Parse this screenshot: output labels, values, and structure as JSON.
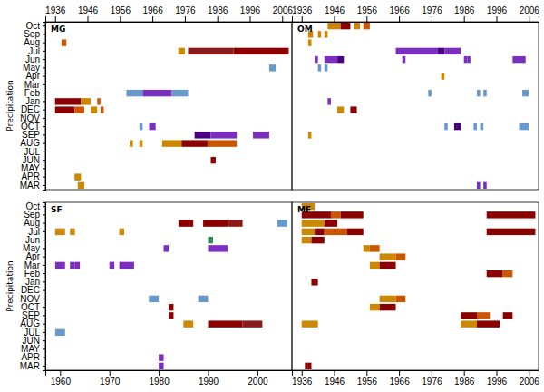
{
  "chart_data": [
    {
      "type": "bar",
      "orientation": "horizontal",
      "title": "MG",
      "y_label": "Precipitation",
      "categories": [
        "Oct",
        "Sep",
        "Aug",
        "Jul",
        "Jun",
        "May",
        "Apr",
        "Mar",
        "Feb",
        "Jan",
        "DEC",
        "NOV",
        "OCT",
        "SEP",
        "AUG",
        "JUL",
        "JUN",
        "MAY",
        "APR",
        "MAR"
      ],
      "xlim": [
        1933,
        2009
      ],
      "xticks": [
        1936,
        1946,
        1956,
        1966,
        1976,
        1986,
        1996,
        2006
      ],
      "bars": [
        {
          "category": "Aug",
          "start": 1938,
          "end": 1939.5,
          "color": "#cc5500"
        },
        {
          "category": "Jul",
          "start": 1974,
          "end": 1976,
          "color": "#cc8800"
        },
        {
          "category": "Jul",
          "start": 1977,
          "end": 1991,
          "color": "#8b1a1a"
        },
        {
          "category": "Jul",
          "start": 1991,
          "end": 2008,
          "color": "#8b0000"
        },
        {
          "category": "May",
          "start": 2002,
          "end": 2004,
          "color": "#6699cc"
        },
        {
          "category": "Feb",
          "start": 1958,
          "end": 1963,
          "color": "#6699cc"
        },
        {
          "category": "Feb",
          "start": 1963,
          "end": 1972,
          "color": "#7b2fbe"
        },
        {
          "category": "Feb",
          "start": 1972,
          "end": 1977,
          "color": "#6699cc"
        },
        {
          "category": "Jan",
          "start": 1936,
          "end": 1944,
          "color": "#8b0000"
        },
        {
          "category": "Jan",
          "start": 1944,
          "end": 1947,
          "color": "#cc8800"
        },
        {
          "category": "Jan",
          "start": 1949,
          "end": 1950,
          "color": "#cc5500"
        },
        {
          "category": "DEC",
          "start": 1936,
          "end": 1942,
          "color": "#8b0000"
        },
        {
          "category": "DEC",
          "start": 1942,
          "end": 1945,
          "color": "#cc5500"
        },
        {
          "category": "DEC",
          "start": 1947,
          "end": 1949,
          "color": "#cc8800"
        },
        {
          "category": "DEC",
          "start": 1950,
          "end": 1951,
          "color": "#cc5500"
        },
        {
          "category": "OCT",
          "start": 1962,
          "end": 1963,
          "color": "#6699cc"
        },
        {
          "category": "OCT",
          "start": 1965,
          "end": 1967,
          "color": "#7b2fbe"
        },
        {
          "category": "SEP",
          "start": 1979,
          "end": 1984,
          "color": "#4b0082"
        },
        {
          "category": "SEP",
          "start": 1984,
          "end": 1992,
          "color": "#7b2fbe"
        },
        {
          "category": "SEP",
          "start": 1997,
          "end": 2002,
          "color": "#7b2fbe"
        },
        {
          "category": "AUG",
          "start": 1959,
          "end": 1960,
          "color": "#cc8800"
        },
        {
          "category": "AUG",
          "start": 1962,
          "end": 1963,
          "color": "#cc8800"
        },
        {
          "category": "AUG",
          "start": 1969,
          "end": 1975,
          "color": "#cc8800"
        },
        {
          "category": "AUG",
          "start": 1975,
          "end": 1983,
          "color": "#8b0000"
        },
        {
          "category": "AUG",
          "start": 1983,
          "end": 1992,
          "color": "#cc5500"
        },
        {
          "category": "JUN",
          "start": 1984,
          "end": 1985.5,
          "color": "#8b0000"
        },
        {
          "category": "APR",
          "start": 1942,
          "end": 1944,
          "color": "#cc8800"
        },
        {
          "category": "MAR",
          "start": 1943,
          "end": 1945,
          "color": "#cc8800"
        }
      ]
    },
    {
      "type": "bar",
      "orientation": "horizontal",
      "title": "OM",
      "tick_labels": "x",
      "categories": [
        "Oct",
        "Sep",
        "Aug",
        "Jul",
        "Jun",
        "May",
        "Apr",
        "Mar",
        "Feb",
        "Jan",
        "DEC",
        "NOV",
        "OCT",
        "SEP",
        "AUG",
        "JUL",
        "JUN",
        "MAY",
        "APR",
        "MAR"
      ],
      "xlim": [
        1933,
        2009
      ],
      "xticks": [
        1936,
        1946,
        1956,
        1966,
        1976,
        1986,
        1996,
        2006
      ],
      "bars": [
        {
          "category": "Oct",
          "start": 1944,
          "end": 1948,
          "color": "#cc8800"
        },
        {
          "category": "Oct",
          "start": 1948,
          "end": 1951,
          "color": "#8b0000"
        },
        {
          "category": "Oct",
          "start": 1952,
          "end": 1954,
          "color": "#cc8800"
        },
        {
          "category": "Oct",
          "start": 1955,
          "end": 1957,
          "color": "#cc5500"
        },
        {
          "category": "Sep",
          "start": 1938,
          "end": 1939.5,
          "color": "#cc8800"
        },
        {
          "category": "Sep",
          "start": 1941,
          "end": 1942,
          "color": "#cc8800"
        },
        {
          "category": "Sep",
          "start": 1943,
          "end": 1944,
          "color": "#cc8800"
        },
        {
          "category": "Aug",
          "start": 1938,
          "end": 1939,
          "color": "#cc8800"
        },
        {
          "category": "Jul",
          "start": 1965,
          "end": 1978,
          "color": "#7b2fbe"
        },
        {
          "category": "Jul",
          "start": 1978,
          "end": 1980,
          "color": "#4b0082"
        },
        {
          "category": "Jul",
          "start": 1980,
          "end": 1985,
          "color": "#7b2fbe"
        },
        {
          "category": "Jun",
          "start": 1940,
          "end": 1941,
          "color": "#7b2fbe"
        },
        {
          "category": "Jun",
          "start": 1943,
          "end": 1947,
          "color": "#7b2fbe"
        },
        {
          "category": "Jun",
          "start": 1947,
          "end": 1949,
          "color": "#4b0082"
        },
        {
          "category": "Jun",
          "start": 1967,
          "end": 1968,
          "color": "#7b2fbe"
        },
        {
          "category": "Jun",
          "start": 1986,
          "end": 1987,
          "color": "#7b2fbe"
        },
        {
          "category": "Jun",
          "start": 1987,
          "end": 1988,
          "color": "#7b2fbe"
        },
        {
          "category": "Jun",
          "start": 2001,
          "end": 2005,
          "color": "#7b2fbe"
        },
        {
          "category": "May",
          "start": 1941,
          "end": 1942,
          "color": "#6699cc"
        },
        {
          "category": "May",
          "start": 1943,
          "end": 1944,
          "color": "#6699cc"
        },
        {
          "category": "Apr",
          "start": 1979,
          "end": 1980,
          "color": "#cc8800"
        },
        {
          "category": "Feb",
          "start": 1975,
          "end": 1976,
          "color": "#6699cc"
        },
        {
          "category": "Feb",
          "start": 1990,
          "end": 1991,
          "color": "#6699cc"
        },
        {
          "category": "Feb",
          "start": 1992,
          "end": 1993,
          "color": "#6699cc"
        },
        {
          "category": "Feb",
          "start": 2004,
          "end": 2006,
          "color": "#6699cc"
        },
        {
          "category": "Jan",
          "start": 1944,
          "end": 1945,
          "color": "#7b2fbe"
        },
        {
          "category": "DEC",
          "start": 1947,
          "end": 1949,
          "color": "#cc8800"
        },
        {
          "category": "DEC",
          "start": 1951,
          "end": 1953,
          "color": "#8b0000"
        },
        {
          "category": "OCT",
          "start": 1980,
          "end": 1981,
          "color": "#6699cc"
        },
        {
          "category": "OCT",
          "start": 1983,
          "end": 1985,
          "color": "#4b0082"
        },
        {
          "category": "OCT",
          "start": 1989,
          "end": 1990,
          "color": "#6699cc"
        },
        {
          "category": "OCT",
          "start": 1991,
          "end": 1992,
          "color": "#6699cc"
        },
        {
          "category": "OCT",
          "start": 2003,
          "end": 2006,
          "color": "#6699cc"
        },
        {
          "category": "SEP",
          "start": 1938,
          "end": 1939,
          "color": "#cc8800"
        },
        {
          "category": "MAR",
          "start": 1990,
          "end": 1991,
          "color": "#7b2fbe"
        },
        {
          "category": "MAR",
          "start": 1992,
          "end": 1993,
          "color": "#7b2fbe"
        }
      ]
    },
    {
      "type": "bar",
      "orientation": "horizontal",
      "title": "SF",
      "y_label": "Precipitation",
      "categories": [
        "Oct",
        "Sep",
        "Aug",
        "Jul",
        "Jun",
        "May",
        "Apr",
        "Mar",
        "Feb",
        "Jan",
        "DEC",
        "NOV",
        "OCT",
        "SEP",
        "AUG",
        "JUL",
        "JUN",
        "MAY",
        "APR",
        "MAR"
      ],
      "xlim": [
        1957,
        2007
      ],
      "xticks": [
        1960,
        1970,
        1980,
        1990,
        2000
      ],
      "bars": [
        {
          "category": "Aug",
          "start": 1984,
          "end": 1987,
          "color": "#8b0000"
        },
        {
          "category": "Aug",
          "start": 1989,
          "end": 1994,
          "color": "#8b0000"
        },
        {
          "category": "Aug",
          "start": 1994,
          "end": 1997,
          "color": "#8b1a1a"
        },
        {
          "category": "Aug",
          "start": 2004,
          "end": 2006,
          "color": "#6699cc"
        },
        {
          "category": "Jul",
          "start": 1959,
          "end": 1961,
          "color": "#cc8800"
        },
        {
          "category": "Jul",
          "start": 1962,
          "end": 1963,
          "color": "#cc8800"
        },
        {
          "category": "Jul",
          "start": 1972,
          "end": 1973,
          "color": "#cc8800"
        },
        {
          "category": "Jun",
          "start": 1990,
          "end": 1991,
          "color": "#2e8b57"
        },
        {
          "category": "May",
          "start": 1981,
          "end": 1982,
          "color": "#7b2fbe"
        },
        {
          "category": "May",
          "start": 1990,
          "end": 1994,
          "color": "#7b2fbe"
        },
        {
          "category": "Mar",
          "start": 1959,
          "end": 1961,
          "color": "#7b2fbe"
        },
        {
          "category": "Mar",
          "start": 1962,
          "end": 1963,
          "color": "#7b2fbe"
        },
        {
          "category": "Mar",
          "start": 1963,
          "end": 1964,
          "color": "#7b2fbe"
        },
        {
          "category": "Mar",
          "start": 1970,
          "end": 1971,
          "color": "#7b2fbe"
        },
        {
          "category": "Mar",
          "start": 1972,
          "end": 1975,
          "color": "#7b2fbe"
        },
        {
          "category": "NOV",
          "start": 1978,
          "end": 1980,
          "color": "#6699cc"
        },
        {
          "category": "NOV",
          "start": 1988,
          "end": 1990,
          "color": "#6699cc"
        },
        {
          "category": "OCT",
          "start": 1982,
          "end": 1983,
          "color": "#8b0000"
        },
        {
          "category": "SEP",
          "start": 1982,
          "end": 1983,
          "color": "#8b0000"
        },
        {
          "category": "AUG",
          "start": 1985,
          "end": 1987,
          "color": "#cc8800"
        },
        {
          "category": "AUG",
          "start": 1990,
          "end": 1997,
          "color": "#8b0000"
        },
        {
          "category": "AUG",
          "start": 1997,
          "end": 2001,
          "color": "#8b1a1a"
        },
        {
          "category": "JUL",
          "start": 1959,
          "end": 1961,
          "color": "#6699cc"
        },
        {
          "category": "APR",
          "start": 1980,
          "end": 1981,
          "color": "#7b2fbe"
        },
        {
          "category": "MAR",
          "start": 1980,
          "end": 1981,
          "color": "#7b2fbe"
        }
      ]
    },
    {
      "type": "bar",
      "orientation": "horizontal",
      "title": "MF",
      "tick_labels": "x",
      "categories": [
        "Oct",
        "Sep",
        "Aug",
        "Jul",
        "Jun",
        "May",
        "Apr",
        "Mar",
        "Feb",
        "Jan",
        "DEC",
        "NOV",
        "OCT",
        "SEP",
        "AUG",
        "JUL",
        "JUN",
        "MAY",
        "APR",
        "MAR"
      ],
      "xlim": [
        1933,
        2009
      ],
      "xticks": [
        1936,
        1946,
        1956,
        1966,
        1976,
        1986,
        1996,
        2006
      ],
      "bars": [
        {
          "category": "Oct",
          "start": 1936,
          "end": 1940,
          "color": "#cc8800"
        },
        {
          "category": "Sep",
          "start": 1936,
          "end": 1945,
          "color": "#8b0000"
        },
        {
          "category": "Sep",
          "start": 1945,
          "end": 1948,
          "color": "#cc5500"
        },
        {
          "category": "Sep",
          "start": 1948,
          "end": 1955,
          "color": "#8b0000"
        },
        {
          "category": "Sep",
          "start": 1993,
          "end": 2008,
          "color": "#8b0000"
        },
        {
          "category": "Aug",
          "start": 1936,
          "end": 1943,
          "color": "#cc8800"
        },
        {
          "category": "Aug",
          "start": 1943,
          "end": 1947,
          "color": "#8b0000"
        },
        {
          "category": "Jul",
          "start": 1936,
          "end": 1940,
          "color": "#cc8800"
        },
        {
          "category": "Jul",
          "start": 1940,
          "end": 1943,
          "color": "#8b0000"
        },
        {
          "category": "Jul",
          "start": 1943,
          "end": 1950,
          "color": "#cc5500"
        },
        {
          "category": "Jul",
          "start": 1950,
          "end": 1955,
          "color": "#8b0000"
        },
        {
          "category": "Jul",
          "start": 1993,
          "end": 2008,
          "color": "#8b0000"
        },
        {
          "category": "Jun",
          "start": 1936,
          "end": 1939,
          "color": "#cc8800"
        },
        {
          "category": "Jun",
          "start": 1939,
          "end": 1943,
          "color": "#8b0000"
        },
        {
          "category": "May",
          "start": 1955,
          "end": 1957,
          "color": "#cc8800"
        },
        {
          "category": "May",
          "start": 1957,
          "end": 1960,
          "color": "#cc5500"
        },
        {
          "category": "Apr",
          "start": 1960,
          "end": 1965,
          "color": "#cc8800"
        },
        {
          "category": "Apr",
          "start": 1965,
          "end": 1968,
          "color": "#cc5500"
        },
        {
          "category": "Mar",
          "start": 1957,
          "end": 1960,
          "color": "#cc8800"
        },
        {
          "category": "Mar",
          "start": 1960,
          "end": 1965,
          "color": "#8b0000"
        },
        {
          "category": "Feb",
          "start": 1993,
          "end": 1998,
          "color": "#8b0000"
        },
        {
          "category": "Feb",
          "start": 1998,
          "end": 2001,
          "color": "#cc5500"
        },
        {
          "category": "Jan",
          "start": 1939,
          "end": 1941,
          "color": "#8b0000"
        },
        {
          "category": "NOV",
          "start": 1960,
          "end": 1965,
          "color": "#cc8800"
        },
        {
          "category": "NOV",
          "start": 1965,
          "end": 1968,
          "color": "#cc5500"
        },
        {
          "category": "OCT",
          "start": 1957,
          "end": 1960,
          "color": "#cc8800"
        },
        {
          "category": "OCT",
          "start": 1960,
          "end": 1965,
          "color": "#8b0000"
        },
        {
          "category": "SEP",
          "start": 1985,
          "end": 1990,
          "color": "#8b0000"
        },
        {
          "category": "SEP",
          "start": 1990,
          "end": 1994,
          "color": "#cc5500"
        },
        {
          "category": "SEP",
          "start": 1998,
          "end": 2001,
          "color": "#8b0000"
        },
        {
          "category": "AUG",
          "start": 1936,
          "end": 1941,
          "color": "#cc8800"
        },
        {
          "category": "AUG",
          "start": 1985,
          "end": 1990,
          "color": "#cc8800"
        },
        {
          "category": "AUG",
          "start": 1990,
          "end": 1997,
          "color": "#8b0000"
        },
        {
          "category": "MAR",
          "start": 1937,
          "end": 1938,
          "color": "#8b0000"
        },
        {
          "category": "MAR",
          "start": 1938,
          "end": 1939,
          "color": "#8b0000"
        }
      ]
    }
  ]
}
